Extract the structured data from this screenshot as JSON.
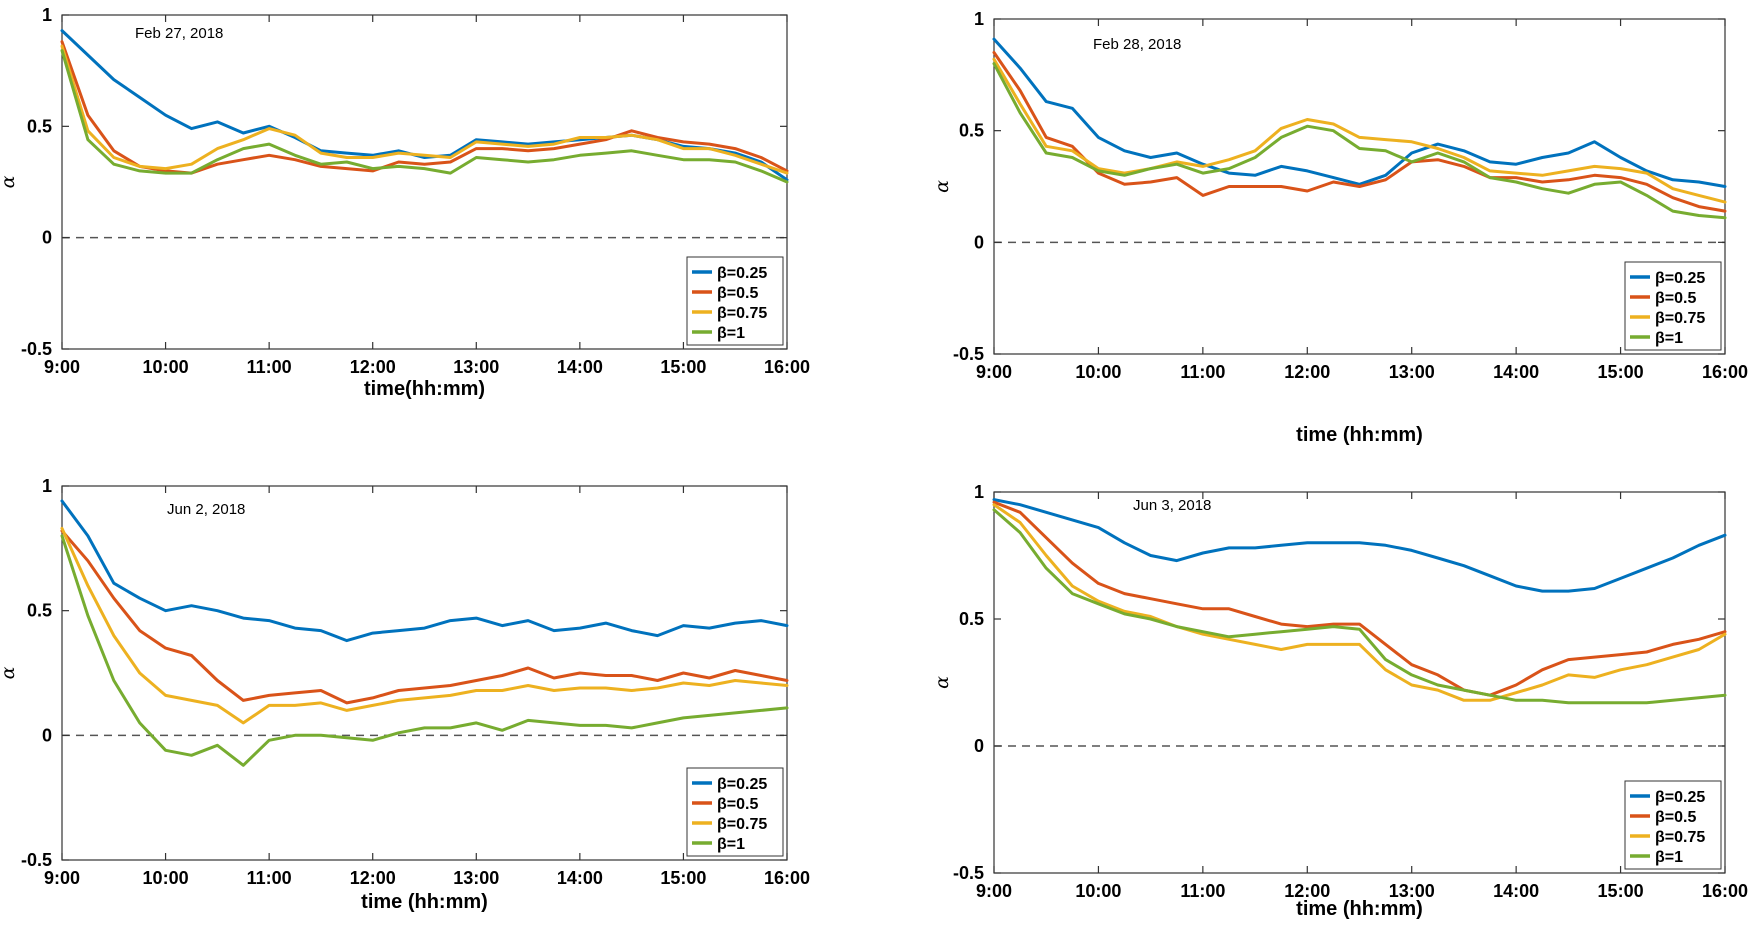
{
  "colors": {
    "beta_0.25": "#0072BD",
    "beta_0.5": "#D95319",
    "beta_0.75": "#EDB120",
    "beta_1": "#77AC30",
    "zero_line": "#555555"
  },
  "chart_data": [
    {
      "type": "line",
      "title": "Feb 27, 2018",
      "xlabel": "time(hh:mm)",
      "ylabel": "α",
      "x_ticks": [
        "9:00",
        "10:00",
        "11:00",
        "12:00",
        "13:00",
        "14:00",
        "15:00",
        "16:00"
      ],
      "y_ticks": [
        "1",
        "0.5",
        "0",
        "-0.5"
      ],
      "ylim": [
        -0.5,
        1
      ],
      "x": [
        9.0,
        9.25,
        9.5,
        9.75,
        10.0,
        10.25,
        10.5,
        10.75,
        11.0,
        11.25,
        11.5,
        11.75,
        12.0,
        12.25,
        12.5,
        12.75,
        13.0,
        13.25,
        13.5,
        13.75,
        14.0,
        14.25,
        14.5,
        14.75,
        15.0,
        15.25,
        15.5,
        15.75,
        16.0
      ],
      "legend_position": "bottom-right",
      "series": [
        {
          "name": "β=0.25",
          "beta": "0.25",
          "values": [
            0.93,
            0.82,
            0.71,
            0.63,
            0.55,
            0.49,
            0.52,
            0.47,
            0.5,
            0.45,
            0.39,
            0.38,
            0.37,
            0.39,
            0.36,
            0.37,
            0.44,
            0.43,
            0.42,
            0.43,
            0.44,
            0.45,
            0.46,
            0.44,
            0.41,
            0.4,
            0.38,
            0.34,
            0.26
          ]
        },
        {
          "name": "β=0.5",
          "beta": "0.5",
          "values": [
            0.88,
            0.55,
            0.39,
            0.32,
            0.3,
            0.29,
            0.33,
            0.35,
            0.37,
            0.35,
            0.32,
            0.31,
            0.3,
            0.34,
            0.33,
            0.34,
            0.4,
            0.4,
            0.39,
            0.4,
            0.42,
            0.44,
            0.48,
            0.45,
            0.43,
            0.42,
            0.4,
            0.36,
            0.3
          ]
        },
        {
          "name": "β=0.75",
          "beta": "0.75",
          "values": [
            0.86,
            0.48,
            0.36,
            0.32,
            0.31,
            0.33,
            0.4,
            0.44,
            0.49,
            0.46,
            0.38,
            0.36,
            0.36,
            0.38,
            0.37,
            0.36,
            0.43,
            0.42,
            0.41,
            0.42,
            0.45,
            0.45,
            0.46,
            0.44,
            0.4,
            0.4,
            0.37,
            0.33,
            0.29
          ]
        },
        {
          "name": "β=1",
          "beta": "1",
          "values": [
            0.84,
            0.44,
            0.33,
            0.3,
            0.29,
            0.29,
            0.35,
            0.4,
            0.42,
            0.37,
            0.33,
            0.34,
            0.31,
            0.32,
            0.31,
            0.29,
            0.36,
            0.35,
            0.34,
            0.35,
            0.37,
            0.38,
            0.39,
            0.37,
            0.35,
            0.35,
            0.34,
            0.3,
            0.25
          ]
        }
      ]
    },
    {
      "type": "line",
      "title": "Feb 28, 2018",
      "xlabel": "time (hh:mm)",
      "ylabel": "α",
      "x_ticks": [
        "9:00",
        "10:00",
        "11:00",
        "12:00",
        "13:00",
        "14:00",
        "15:00",
        "16:00"
      ],
      "y_ticks": [
        "1",
        "0.5",
        "0",
        "-0.5"
      ],
      "ylim": [
        -0.5,
        1
      ],
      "x": [
        9.0,
        9.25,
        9.5,
        9.75,
        10.0,
        10.25,
        10.5,
        10.75,
        11.0,
        11.25,
        11.5,
        11.75,
        12.0,
        12.25,
        12.5,
        12.75,
        13.0,
        13.25,
        13.5,
        13.75,
        14.0,
        14.25,
        14.5,
        14.75,
        15.0,
        15.25,
        15.5,
        15.75,
        16.0
      ],
      "legend_position": "bottom-right",
      "series": [
        {
          "name": "β=0.25",
          "beta": "0.25",
          "values": [
            0.91,
            0.78,
            0.63,
            0.6,
            0.47,
            0.41,
            0.38,
            0.4,
            0.35,
            0.31,
            0.3,
            0.34,
            0.32,
            0.29,
            0.26,
            0.3,
            0.4,
            0.44,
            0.41,
            0.36,
            0.35,
            0.38,
            0.4,
            0.45,
            0.38,
            0.32,
            0.28,
            0.27,
            0.25
          ]
        },
        {
          "name": "β=0.5",
          "beta": "0.5",
          "values": [
            0.85,
            0.68,
            0.47,
            0.43,
            0.31,
            0.26,
            0.27,
            0.29,
            0.21,
            0.25,
            0.25,
            0.25,
            0.23,
            0.27,
            0.25,
            0.28,
            0.36,
            0.37,
            0.34,
            0.29,
            0.29,
            0.27,
            0.28,
            0.3,
            0.29,
            0.26,
            0.2,
            0.16,
            0.14
          ]
        },
        {
          "name": "β=0.75",
          "beta": "0.75",
          "values": [
            0.82,
            0.62,
            0.43,
            0.41,
            0.33,
            0.31,
            0.33,
            0.36,
            0.34,
            0.37,
            0.41,
            0.51,
            0.55,
            0.53,
            0.47,
            0.46,
            0.45,
            0.42,
            0.38,
            0.32,
            0.31,
            0.3,
            0.32,
            0.34,
            0.33,
            0.31,
            0.24,
            0.21,
            0.18
          ]
        },
        {
          "name": "β=1",
          "beta": "1",
          "values": [
            0.8,
            0.58,
            0.4,
            0.38,
            0.32,
            0.3,
            0.33,
            0.35,
            0.31,
            0.33,
            0.38,
            0.47,
            0.52,
            0.5,
            0.42,
            0.41,
            0.36,
            0.4,
            0.36,
            0.29,
            0.27,
            0.24,
            0.22,
            0.26,
            0.27,
            0.21,
            0.14,
            0.12,
            0.11
          ]
        }
      ]
    },
    {
      "type": "line",
      "title": "Jun 2, 2018",
      "xlabel": "time (hh:mm)",
      "ylabel": "α",
      "x_ticks": [
        "9:00",
        "10:00",
        "11:00",
        "12:00",
        "13:00",
        "14:00",
        "15:00",
        "16:00"
      ],
      "y_ticks": [
        "1",
        "0.5",
        "0",
        "-0.5"
      ],
      "ylim": [
        -0.5,
        1
      ],
      "x": [
        9.0,
        9.25,
        9.5,
        9.75,
        10.0,
        10.25,
        10.5,
        10.75,
        11.0,
        11.25,
        11.5,
        11.75,
        12.0,
        12.25,
        12.5,
        12.75,
        13.0,
        13.25,
        13.5,
        13.75,
        14.0,
        14.25,
        14.5,
        14.75,
        15.0,
        15.25,
        15.5,
        15.75,
        16.0
      ],
      "legend_position": "bottom-right",
      "series": [
        {
          "name": "β=0.25",
          "beta": "0.25",
          "values": [
            0.94,
            0.8,
            0.61,
            0.55,
            0.5,
            0.52,
            0.5,
            0.47,
            0.46,
            0.43,
            0.42,
            0.38,
            0.41,
            0.42,
            0.43,
            0.46,
            0.47,
            0.44,
            0.46,
            0.42,
            0.43,
            0.45,
            0.42,
            0.4,
            0.44,
            0.43,
            0.45,
            0.46,
            0.44
          ]
        },
        {
          "name": "β=0.5",
          "beta": "0.5",
          "values": [
            0.82,
            0.7,
            0.55,
            0.42,
            0.35,
            0.32,
            0.22,
            0.14,
            0.16,
            0.17,
            0.18,
            0.13,
            0.15,
            0.18,
            0.19,
            0.2,
            0.22,
            0.24,
            0.27,
            0.23,
            0.25,
            0.24,
            0.24,
            0.22,
            0.25,
            0.23,
            0.26,
            0.24,
            0.22
          ]
        },
        {
          "name": "β=0.75",
          "beta": "0.75",
          "values": [
            0.83,
            0.6,
            0.4,
            0.25,
            0.16,
            0.14,
            0.12,
            0.05,
            0.12,
            0.12,
            0.13,
            0.1,
            0.12,
            0.14,
            0.15,
            0.16,
            0.18,
            0.18,
            0.2,
            0.18,
            0.19,
            0.19,
            0.18,
            0.19,
            0.21,
            0.2,
            0.22,
            0.21,
            0.2
          ]
        },
        {
          "name": "β=1",
          "beta": "1",
          "values": [
            0.8,
            0.48,
            0.22,
            0.05,
            -0.06,
            -0.08,
            -0.04,
            -0.12,
            -0.02,
            0.0,
            0.0,
            -0.01,
            -0.02,
            0.01,
            0.03,
            0.03,
            0.05,
            0.02,
            0.06,
            0.05,
            0.04,
            0.04,
            0.03,
            0.05,
            0.07,
            0.08,
            0.09,
            0.1,
            0.11
          ]
        }
      ]
    },
    {
      "type": "line",
      "title": "Jun 3, 2018",
      "xlabel": "time (hh:mm)",
      "ylabel": "α",
      "x_ticks": [
        "9:00",
        "10:00",
        "11:00",
        "12:00",
        "13:00",
        "14:00",
        "15:00",
        "16:00"
      ],
      "y_ticks": [
        "1",
        "0.5",
        "0",
        "-0.5"
      ],
      "ylim": [
        -0.5,
        1
      ],
      "x": [
        9.0,
        9.25,
        9.5,
        9.75,
        10.0,
        10.25,
        10.5,
        10.75,
        11.0,
        11.25,
        11.5,
        11.75,
        12.0,
        12.25,
        12.5,
        12.75,
        13.0,
        13.25,
        13.5,
        13.75,
        14.0,
        14.25,
        14.5,
        14.75,
        15.0,
        15.25,
        15.5,
        15.75,
        16.0
      ],
      "legend_position": "bottom-right",
      "series": [
        {
          "name": "β=0.25",
          "beta": "0.25",
          "values": [
            0.97,
            0.95,
            0.92,
            0.89,
            0.86,
            0.8,
            0.75,
            0.73,
            0.76,
            0.78,
            0.78,
            0.79,
            0.8,
            0.8,
            0.8,
            0.79,
            0.77,
            0.74,
            0.71,
            0.67,
            0.63,
            0.61,
            0.61,
            0.62,
            0.66,
            0.7,
            0.74,
            0.79,
            0.83
          ]
        },
        {
          "name": "β=0.5",
          "beta": "0.5",
          "values": [
            0.96,
            0.92,
            0.82,
            0.72,
            0.64,
            0.6,
            0.58,
            0.56,
            0.54,
            0.54,
            0.51,
            0.48,
            0.47,
            0.48,
            0.48,
            0.4,
            0.32,
            0.28,
            0.22,
            0.2,
            0.24,
            0.3,
            0.34,
            0.35,
            0.36,
            0.37,
            0.4,
            0.42,
            0.45
          ]
        },
        {
          "name": "β=0.75",
          "beta": "0.75",
          "values": [
            0.95,
            0.88,
            0.75,
            0.63,
            0.57,
            0.53,
            0.51,
            0.47,
            0.44,
            0.42,
            0.4,
            0.38,
            0.4,
            0.4,
            0.4,
            0.3,
            0.24,
            0.22,
            0.18,
            0.18,
            0.21,
            0.24,
            0.28,
            0.27,
            0.3,
            0.32,
            0.35,
            0.38,
            0.44
          ]
        },
        {
          "name": "β=1",
          "beta": "1",
          "values": [
            0.93,
            0.84,
            0.7,
            0.6,
            0.56,
            0.52,
            0.5,
            0.47,
            0.45,
            0.43,
            0.44,
            0.45,
            0.46,
            0.47,
            0.46,
            0.34,
            0.28,
            0.24,
            0.22,
            0.2,
            0.18,
            0.18,
            0.17,
            0.17,
            0.17,
            0.17,
            0.18,
            0.19,
            0.2
          ]
        }
      ]
    }
  ]
}
